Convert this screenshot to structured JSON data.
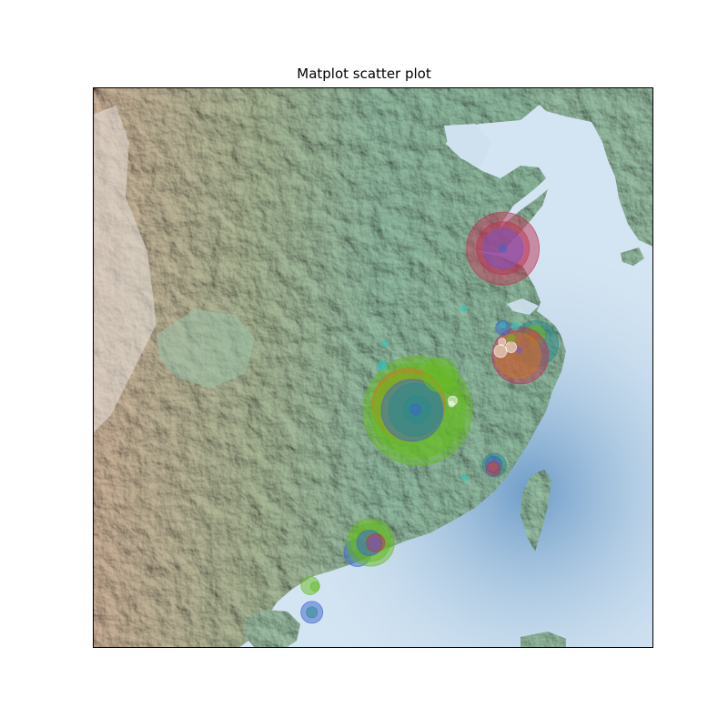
{
  "title": "Matplot scatter plot",
  "map": {
    "style": "shaded-relief",
    "region": "Eastern China",
    "colors": {
      "sea": "#d3e4f2",
      "deep_sea": "#7fa8cf",
      "lowland": "#93bca2",
      "highland": "#c9a98a",
      "mountain_peak": "#e9e6e2"
    }
  },
  "chart_data": {
    "type": "scatter",
    "title": "Matplot scatter plot",
    "xlabel": "",
    "ylabel": "",
    "grid": false,
    "xlim": [
      101,
      127
    ],
    "ylim": [
      17,
      43
    ],
    "point_alpha": 0.5,
    "palette": {
      "green": "#66bb22",
      "blue": "#3a66cc",
      "red": "#bb3355",
      "teal": "#2a8a8a",
      "orange": "#cc7722",
      "purple": "#7755cc",
      "cyan": "#22cccc",
      "white": "#ffffff"
    },
    "points": [
      {
        "lon": 116.07,
        "lat": 28.0,
        "r": 60,
        "color": "green"
      },
      {
        "lon": 116.09,
        "lat": 28.02,
        "r": 52,
        "color": "green"
      },
      {
        "lon": 115.65,
        "lat": 28.28,
        "r": 40,
        "color": "orange"
      },
      {
        "lon": 115.65,
        "lat": 28.09,
        "r": 39,
        "color": "green"
      },
      {
        "lon": 115.82,
        "lat": 28.02,
        "r": 34,
        "color": "blue"
      },
      {
        "lon": 115.95,
        "lat": 28.04,
        "r": 29,
        "color": "teal"
      },
      {
        "lon": 116.04,
        "lat": 28.06,
        "r": 15,
        "color": "teal"
      },
      {
        "lon": 115.97,
        "lat": 28.06,
        "r": 6,
        "color": "blue"
      },
      {
        "lon": 117.12,
        "lat": 29.66,
        "r": 19,
        "color": "green"
      },
      {
        "lon": 117.23,
        "lat": 29.42,
        "r": 4,
        "color": "green"
      },
      {
        "lon": 114.42,
        "lat": 30.09,
        "r": 5,
        "color": "cyan"
      },
      {
        "lon": 114.55,
        "lat": 31.13,
        "r": 3,
        "color": "cyan"
      },
      {
        "lon": 117.69,
        "lat": 28.47,
        "r": 5,
        "color": "white"
      },
      {
        "lon": 117.64,
        "lat": 28.31,
        "r": 3,
        "color": "white"
      },
      {
        "lon": 120.02,
        "lat": 35.52,
        "r": 40,
        "color": "red"
      },
      {
        "lon": 120.02,
        "lat": 35.54,
        "r": 29,
        "color": "red"
      },
      {
        "lon": 120.02,
        "lat": 35.52,
        "r": 22,
        "color": "purple"
      },
      {
        "lon": 120.02,
        "lat": 35.52,
        "r": 4,
        "color": "blue"
      },
      {
        "lon": 121.54,
        "lat": 31.12,
        "r": 25,
        "color": "teal"
      },
      {
        "lon": 121.5,
        "lat": 31.52,
        "r": 11,
        "color": "green"
      },
      {
        "lon": 121.45,
        "lat": 31.49,
        "r": 5,
        "color": "orange"
      },
      {
        "lon": 121.07,
        "lat": 31.16,
        "r": 5,
        "color": "blue"
      },
      {
        "lon": 120.83,
        "lat": 30.56,
        "r": 31,
        "color": "red"
      },
      {
        "lon": 120.71,
        "lat": 30.56,
        "r": 25,
        "color": "orange"
      },
      {
        "lon": 120.78,
        "lat": 30.81,
        "r": 3,
        "color": "purple"
      },
      {
        "lon": 120.4,
        "lat": 30.95,
        "r": 6,
        "color": "white"
      },
      {
        "lon": 119.98,
        "lat": 31.2,
        "r": 4,
        "color": "white"
      },
      {
        "lon": 119.91,
        "lat": 30.77,
        "r": 7,
        "color": "white"
      },
      {
        "lon": 120.02,
        "lat": 31.84,
        "r": 8,
        "color": "blue"
      },
      {
        "lon": 120.42,
        "lat": 31.35,
        "r": 4,
        "color": "green"
      },
      {
        "lon": 120.61,
        "lat": 31.92,
        "r": 4,
        "color": "cyan"
      },
      {
        "lon": 120.02,
        "lat": 31.97,
        "r": 3,
        "color": "cyan"
      },
      {
        "lon": 119.62,
        "lat": 25.48,
        "r": 13,
        "color": "teal"
      },
      {
        "lon": 119.58,
        "lat": 25.51,
        "r": 9,
        "color": "blue"
      },
      {
        "lon": 119.58,
        "lat": 25.39,
        "r": 4,
        "color": "orange"
      },
      {
        "lon": 119.58,
        "lat": 25.31,
        "r": 8,
        "color": "red"
      },
      {
        "lon": 118.19,
        "lat": 32.74,
        "r": 3,
        "color": "cyan"
      },
      {
        "lon": 113.28,
        "lat": 21.41,
        "r": 15,
        "color": "blue"
      },
      {
        "lon": 113.89,
        "lat": 21.89,
        "r": 26,
        "color": "green"
      },
      {
        "lon": 113.89,
        "lat": 21.89,
        "r": 21,
        "color": "green"
      },
      {
        "lon": 113.83,
        "lat": 21.87,
        "r": 14,
        "color": "blue"
      },
      {
        "lon": 114.12,
        "lat": 21.87,
        "r": 10,
        "color": "red"
      },
      {
        "lon": 114.07,
        "lat": 21.85,
        "r": 6,
        "color": "purple"
      },
      {
        "lon": 111.08,
        "lat": 19.89,
        "r": 10,
        "color": "green"
      },
      {
        "lon": 111.31,
        "lat": 19.85,
        "r": 5,
        "color": "green"
      },
      {
        "lon": 111.16,
        "lat": 18.65,
        "r": 12,
        "color": "blue"
      },
      {
        "lon": 111.16,
        "lat": 18.65,
        "r": 6,
        "color": "teal"
      },
      {
        "lon": 118.26,
        "lat": 24.89,
        "r": 3,
        "color": "cyan"
      }
    ]
  }
}
